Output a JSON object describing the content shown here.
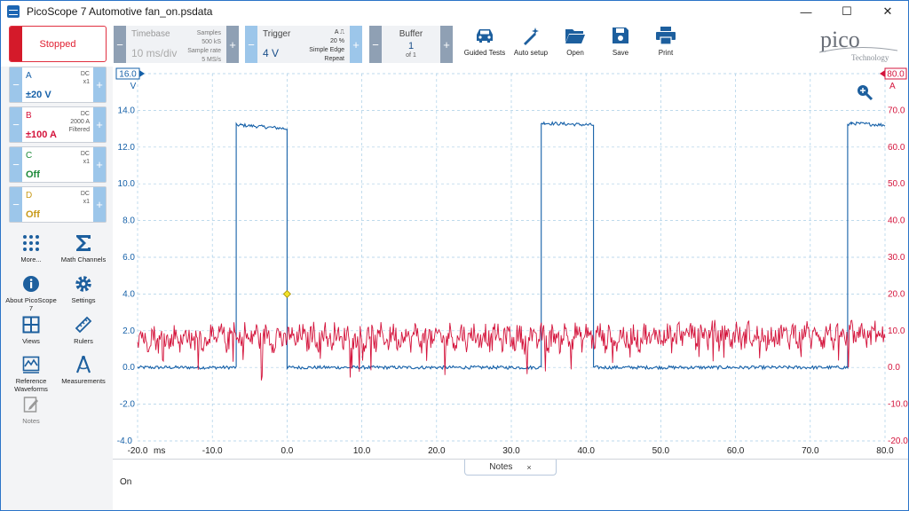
{
  "window": {
    "title": "PicoScope 7 Automotive fan_on.psdata",
    "minimize": "—",
    "maximize": "☐",
    "close": "✕"
  },
  "toolbar": {
    "run_state": "Stopped",
    "timebase": {
      "label": "Timebase",
      "value": "10 ms/div",
      "samples_label": "Samples",
      "samples": "500 kS",
      "rate_label": "Sample rate",
      "rate": "5 MS/s"
    },
    "trigger": {
      "label": "Trigger",
      "value": "4 V",
      "channel": "A",
      "percent": "20 %",
      "mode": "Simple Edge",
      "repeat": "Repeat"
    },
    "buffer": {
      "label": "Buffer",
      "value": "1",
      "of": "of 1"
    },
    "tools": [
      {
        "label": "Guided Tests",
        "icon": "car-icon"
      },
      {
        "label": "Auto setup",
        "icon": "magic-wand-icon"
      },
      {
        "label": "Open",
        "icon": "folder-icon"
      },
      {
        "label": "Save",
        "icon": "floppy-icon"
      },
      {
        "label": "Print",
        "icon": "printer-icon"
      }
    ],
    "logo": {
      "brand": "pico",
      "sub": "Technology"
    }
  },
  "channels": [
    {
      "name": "A",
      "range": "±20 V",
      "coupling": "DC",
      "probe": "x1",
      "extra": "",
      "color": "#1560a8"
    },
    {
      "name": "B",
      "range": "±100 A",
      "coupling": "DC",
      "probe": "2000 A",
      "extra": "Filtered",
      "color": "#d4143c"
    },
    {
      "name": "C",
      "range": "Off",
      "coupling": "DC",
      "probe": "x1",
      "extra": "",
      "color": "#1e8a3a"
    },
    {
      "name": "D",
      "range": "Off",
      "coupling": "DC",
      "probe": "x1",
      "extra": "",
      "color": "#c89a1a"
    }
  ],
  "side_tools": [
    {
      "label": "More...",
      "icon": "dots-grid-icon"
    },
    {
      "label": "Math Channels",
      "icon": "sigma-icon"
    },
    {
      "label": "About PicoScope 7",
      "icon": "info-icon"
    },
    {
      "label": "Settings",
      "icon": "gear-icon"
    },
    {
      "label": "Views",
      "icon": "grid-icon"
    },
    {
      "label": "Rulers",
      "icon": "ruler-icon"
    },
    {
      "label": "Reference Waveforms",
      "icon": "waveform-icon"
    },
    {
      "label": "Measurements",
      "icon": "calipers-icon"
    },
    {
      "label": "Notes",
      "icon": "note-icon"
    }
  ],
  "chart_data": {
    "type": "line",
    "x_unit": "ms",
    "xlim": [
      -20,
      80
    ],
    "x_ticks": [
      "-20.0",
      "-10.0",
      "0.0",
      "10.0",
      "20.0",
      "30.0",
      "40.0",
      "50.0",
      "60.0",
      "70.0",
      "80.0"
    ],
    "left_axis": {
      "unit": "V",
      "top_label": "16.0",
      "ylim": [
        -4,
        16
      ],
      "ticks": [
        "14.0",
        "12.0",
        "10.0",
        "8.0",
        "6.0",
        "4.0",
        "2.0",
        "0.0",
        "-2.0"
      ],
      "bottom_label": "-4.0"
    },
    "right_axis": {
      "unit": "A",
      "top_label": "80.0",
      "ylim": [
        -20,
        80
      ],
      "ticks": [
        "70.0",
        "60.0",
        "50.0",
        "40.0",
        "30.0",
        "20.0",
        "10.0",
        "0.0",
        "-10.0",
        "-20.0"
      ]
    },
    "trigger_marker": {
      "x": 0.0,
      "y": 4.0
    },
    "series": [
      {
        "name": "A",
        "unit": "V",
        "color": "#1560a8",
        "x": [
          -20,
          -6.8,
          -6.8,
          -6.2,
          0,
          0,
          34,
          34,
          34.5,
          41,
          41,
          75,
          75,
          75.5,
          80
        ],
        "y": [
          0.0,
          0.0,
          13.2,
          13.2,
          13.0,
          0.0,
          0.0,
          13.3,
          13.3,
          13.2,
          0.0,
          0.0,
          13.2,
          13.3,
          13.2
        ]
      },
      {
        "name": "B",
        "unit": "A",
        "color": "#d4143c",
        "x": [
          -20,
          -15,
          -10,
          -5,
          0,
          5,
          10,
          15,
          20,
          25,
          30,
          35,
          40,
          45,
          50,
          55,
          60,
          65,
          70,
          75,
          80
        ],
        "y": [
          8,
          8,
          8,
          8.5,
          8,
          8.5,
          8,
          8.5,
          8,
          8.5,
          8,
          8,
          8.5,
          8,
          8.5,
          9,
          8.5,
          8.5,
          9,
          8.5,
          9
        ]
      }
    ]
  },
  "notes": {
    "tab_label": "Notes",
    "close": "×",
    "text": "On"
  }
}
